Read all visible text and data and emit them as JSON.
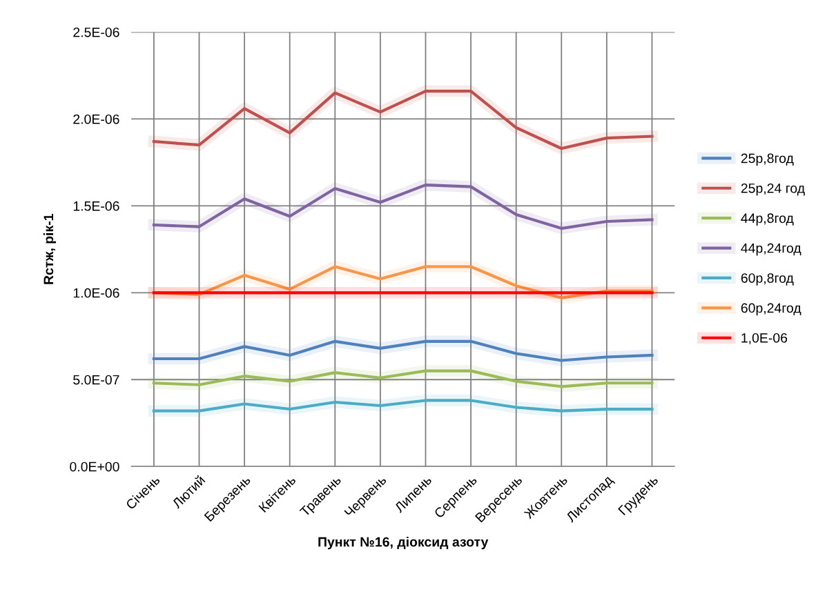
{
  "chart_data": {
    "type": "line",
    "xlabel": "Пункт №16, діоксид азоту",
    "ylabel": "Rстж, рік-1",
    "categories": [
      "Січень",
      "Лютий",
      "Березень",
      "Квітень",
      "Травень",
      "Червень",
      "Липень",
      "Серпень",
      "Вересень",
      "Жовтень",
      "Листопад",
      "Грудень"
    ],
    "series": [
      {
        "name": "25р,8год",
        "color": "#4f81bd",
        "values": [
          6.2e-07,
          6.2e-07,
          6.9e-07,
          6.4e-07,
          7.2e-07,
          6.8e-07,
          7.2e-07,
          7.2e-07,
          6.5e-07,
          6.1e-07,
          6.3e-07,
          6.4e-07
        ]
      },
      {
        "name": "25р,24 год",
        "color": "#c0504d",
        "values": [
          1.87e-06,
          1.85e-06,
          2.06e-06,
          1.92e-06,
          2.15e-06,
          2.04e-06,
          2.16e-06,
          2.16e-06,
          1.95e-06,
          1.83e-06,
          1.89e-06,
          1.9e-06
        ]
      },
      {
        "name": "44р,8год",
        "color": "#9bbb59",
        "values": [
          4.8e-07,
          4.7e-07,
          5.2e-07,
          4.9e-07,
          5.4e-07,
          5.1e-07,
          5.5e-07,
          5.5e-07,
          4.9e-07,
          4.6e-07,
          4.8e-07,
          4.8e-07
        ]
      },
      {
        "name": "44р,24год",
        "color": "#8064a2",
        "values": [
          1.39e-06,
          1.38e-06,
          1.54e-06,
          1.44e-06,
          1.6e-06,
          1.52e-06,
          1.62e-06,
          1.61e-06,
          1.45e-06,
          1.37e-06,
          1.41e-06,
          1.42e-06
        ]
      },
      {
        "name": "60р,8год",
        "color": "#4bacc6",
        "values": [
          3.2e-07,
          3.2e-07,
          3.6e-07,
          3.3e-07,
          3.7e-07,
          3.5e-07,
          3.8e-07,
          3.8e-07,
          3.4e-07,
          3.2e-07,
          3.3e-07,
          3.3e-07
        ]
      },
      {
        "name": "60р,24год",
        "color": "#f79646",
        "values": [
          1e-06,
          9.9e-07,
          1.1e-06,
          1.02e-06,
          1.15e-06,
          1.08e-06,
          1.15e-06,
          1.15e-06,
          1.04e-06,
          9.7e-07,
          1.01e-06,
          1.01e-06
        ]
      },
      {
        "name": "1,0E-06",
        "color": "#ff0000",
        "values": [
          1e-06,
          1e-06,
          1e-06,
          1e-06,
          1e-06,
          1e-06,
          1e-06,
          1e-06,
          1e-06,
          1e-06,
          1e-06,
          1e-06
        ]
      }
    ],
    "ylim": [
      0,
      2.5e-06
    ],
    "yticks": [
      {
        "value": 0,
        "label": "0.0E+00"
      },
      {
        "value": 5e-07,
        "label": "5.0E-07"
      },
      {
        "value": 1e-06,
        "label": "1.0E-06"
      },
      {
        "value": 1.5e-06,
        "label": "1.5E-06"
      },
      {
        "value": 2e-06,
        "label": "2.0E-06"
      },
      {
        "value": 2.5e-06,
        "label": "2.5E-06"
      }
    ],
    "grid": true,
    "legend": "right",
    "marker": "none",
    "line_style": "solid"
  }
}
